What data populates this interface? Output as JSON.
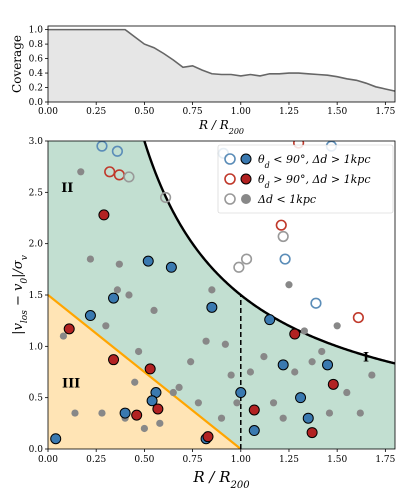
{
  "chart_data": [
    {
      "type": "area",
      "xlabel": "R / R",
      "xlabel_sub": "200",
      "ylabel": "Coverage",
      "xlim": [
        0,
        1.8
      ],
      "ylim": [
        0,
        1.05
      ],
      "xticks": [
        0.0,
        0.25,
        0.5,
        0.75,
        1.0,
        1.25,
        1.5,
        1.75
      ],
      "xtick_labels": [
        "0.00",
        "0.25",
        "0.50",
        "0.75",
        "1.00",
        "1.25",
        "1.50",
        "1.75"
      ],
      "yticks": [
        0.0,
        0.2,
        0.4,
        0.6,
        0.8,
        1.0
      ],
      "ytick_labels": [
        "0.0",
        "0.2",
        "0.4",
        "0.6",
        "0.8",
        "1.0"
      ],
      "colors": {
        "fill": "#e6e6e6",
        "line": "#666666"
      },
      "series": [
        {
          "x": [
            0.0,
            0.1,
            0.2,
            0.3,
            0.4,
            0.45,
            0.5,
            0.55,
            0.6,
            0.65,
            0.7,
            0.75,
            0.8,
            0.85,
            0.9,
            0.95,
            1.0,
            1.05,
            1.1,
            1.15,
            1.2,
            1.25,
            1.3,
            1.35,
            1.4,
            1.45,
            1.5,
            1.55,
            1.6,
            1.65,
            1.7,
            1.75,
            1.8
          ],
          "values": [
            1.0,
            1.0,
            1.0,
            1.0,
            1.0,
            0.9,
            0.8,
            0.75,
            0.67,
            0.58,
            0.48,
            0.5,
            0.44,
            0.39,
            0.38,
            0.38,
            0.36,
            0.38,
            0.36,
            0.39,
            0.39,
            0.4,
            0.4,
            0.39,
            0.38,
            0.37,
            0.35,
            0.32,
            0.3,
            0.26,
            0.21,
            0.18,
            0.15
          ]
        }
      ]
    },
    {
      "type": "scatter",
      "xlabel": "R / R",
      "xlabel_sub": "200",
      "ylabel": "|v",
      "ylabel_sub_los": "los",
      "ylabel_sub_0": "0",
      "ylabel_sub_v": "v",
      "xlim": [
        0,
        1.8
      ],
      "ylim": [
        0,
        3.0
      ],
      "xticks": [
        0.0,
        0.25,
        0.5,
        0.75,
        1.0,
        1.25,
        1.5,
        1.75
      ],
      "xtick_labels": [
        "0.00",
        "0.25",
        "0.50",
        "0.75",
        "1.00",
        "1.25",
        "1.50",
        "1.75"
      ],
      "yticks": [
        0.0,
        0.5,
        1.0,
        1.5,
        2.0,
        2.5,
        3.0
      ],
      "ytick_labels": [
        "0.0",
        "0.5",
        "1.0",
        "1.5",
        "2.0",
        "2.5",
        "3.0"
      ],
      "regions": [
        {
          "label": "I",
          "x": 1.65,
          "y": 0.9,
          "color": "#c2dfd1"
        },
        {
          "label": "II",
          "x": 0.1,
          "y": 2.55,
          "color": "#c2dfd1"
        },
        {
          "label": "III",
          "x": 0.12,
          "y": 0.65,
          "color": "#ffe4b5"
        }
      ],
      "curves": {
        "escape": {
          "color": "#000000",
          "a": 1.5,
          "x_start": 0.25,
          "x_end": 1.8
        },
        "triangle_line": {
          "color": "#ffa500",
          "x": [
            0.0,
            1.0
          ],
          "y": [
            1.5,
            0.0
          ]
        },
        "vertical_dashed": {
          "x": 1.0,
          "y": [
            0.0,
            1.5
          ],
          "color": "#000000"
        }
      },
      "legend": {
        "position": "top-right",
        "entries": [
          {
            "label_theta": "θ",
            "label_theta_sub": "d",
            "label_rest": " < 90°, Δd > 1kpc",
            "open_color": "#5b8db8",
            "filled_color": "#3a79b0"
          },
          {
            "label_theta": "θ",
            "label_theta_sub": "d",
            "label_rest": " > 90°, Δd > 1kpc",
            "open_color": "#c0392b",
            "filled_color": "#b22222"
          },
          {
            "label_rest": "Δd < 1kpc",
            "open_color": "#999999",
            "filled_color": "#888888"
          }
        ]
      },
      "series": [
        {
          "group": "blue_filled",
          "color": "#3a79b0",
          "points": [
            [
              0.04,
              0.1
            ],
            [
              0.22,
              1.3
            ],
            [
              0.34,
              1.47
            ],
            [
              0.52,
              1.83
            ],
            [
              0.64,
              1.77
            ],
            [
              0.85,
              1.38
            ],
            [
              0.56,
              0.55
            ],
            [
              0.54,
              0.47
            ],
            [
              0.4,
              0.35
            ],
            [
              0.82,
              0.1
            ],
            [
              1.0,
              0.55
            ],
            [
              1.07,
              0.18
            ],
            [
              1.15,
              1.26
            ],
            [
              1.22,
              0.82
            ],
            [
              1.31,
              0.5
            ],
            [
              1.35,
              0.3
            ],
            [
              1.45,
              0.82
            ]
          ]
        },
        {
          "group": "red_filled",
          "color": "#b22222",
          "points": [
            [
              0.11,
              1.17
            ],
            [
              0.29,
              2.28
            ],
            [
              0.34,
              0.87
            ],
            [
              0.46,
              0.33
            ],
            [
              0.53,
              0.78
            ],
            [
              0.57,
              0.39
            ],
            [
              0.83,
              0.12
            ],
            [
              1.07,
              0.38
            ],
            [
              1.28,
              1.12
            ],
            [
              1.37,
              0.16
            ],
            [
              1.48,
              0.63
            ]
          ]
        },
        {
          "group": "blue_open",
          "color": "#5b8db8",
          "points": [
            [
              0.28,
              2.95
            ],
            [
              0.36,
              2.9
            ],
            [
              0.91,
              2.88
            ],
            [
              1.23,
              1.85
            ],
            [
              1.39,
              1.42
            ],
            [
              1.47,
              2.95
            ]
          ]
        },
        {
          "group": "red_open",
          "color": "#c0392b",
          "points": [
            [
              0.32,
              2.7
            ],
            [
              0.37,
              2.67
            ],
            [
              1.21,
              2.18
            ],
            [
              1.3,
              2.98
            ],
            [
              1.61,
              1.28
            ]
          ]
        },
        {
          "group": "gray_open",
          "color": "#999999",
          "points": [
            [
              0.42,
              2.65
            ],
            [
              0.61,
              2.45
            ],
            [
              0.99,
              1.77
            ],
            [
              1.03,
              1.85
            ],
            [
              1.22,
              2.07
            ]
          ]
        },
        {
          "group": "gray_filled",
          "color": "#888888",
          "points": [
            [
              0.08,
              1.1
            ],
            [
              0.14,
              0.35
            ],
            [
              0.17,
              2.7
            ],
            [
              0.22,
              1.85
            ],
            [
              0.28,
              0.35
            ],
            [
              0.3,
              1.2
            ],
            [
              0.36,
              1.55
            ],
            [
              0.37,
              1.8
            ],
            [
              0.4,
              0.3
            ],
            [
              0.42,
              1.5
            ],
            [
              0.45,
              0.65
            ],
            [
              0.47,
              0.95
            ],
            [
              0.5,
              0.2
            ],
            [
              0.55,
              1.35
            ],
            [
              0.58,
              0.25
            ],
            [
              0.65,
              0.55
            ],
            [
              0.68,
              0.6
            ],
            [
              0.74,
              0.85
            ],
            [
              0.78,
              0.45
            ],
            [
              0.82,
              1.05
            ],
            [
              0.85,
              1.55
            ],
            [
              0.9,
              0.3
            ],
            [
              0.92,
              1.02
            ],
            [
              0.95,
              0.72
            ],
            [
              0.98,
              0.45
            ],
            [
              1.05,
              0.75
            ],
            [
              1.12,
              0.9
            ],
            [
              1.17,
              0.45
            ],
            [
              1.22,
              0.3
            ],
            [
              1.25,
              1.6
            ],
            [
              1.28,
              0.75
            ],
            [
              1.33,
              1.15
            ],
            [
              1.37,
              0.85
            ],
            [
              1.42,
              0.95
            ],
            [
              1.46,
              0.35
            ],
            [
              1.5,
              1.2
            ],
            [
              1.55,
              0.55
            ],
            [
              1.62,
              0.35
            ],
            [
              1.68,
              0.72
            ]
          ]
        }
      ]
    }
  ]
}
